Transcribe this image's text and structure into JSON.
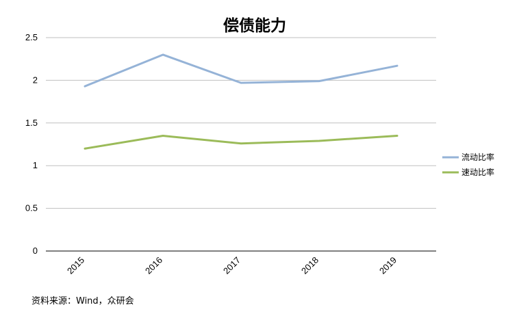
{
  "chart_data": {
    "type": "line",
    "title": "偿债能力",
    "categories": [
      "2015",
      "2016",
      "2017",
      "2018",
      "2019"
    ],
    "ylim": [
      0,
      2.5
    ],
    "yticks": [
      "0",
      "0.5",
      "1",
      "1.5",
      "2",
      "2.5"
    ],
    "grid": true,
    "legend_position": "right",
    "series": [
      {
        "name": "流动比率",
        "color": "#95b3d7",
        "values": [
          1.93,
          2.3,
          1.97,
          1.99,
          2.17
        ]
      },
      {
        "name": "速动比率",
        "color": "#9bbb59",
        "values": [
          1.2,
          1.35,
          1.26,
          1.29,
          1.35
        ]
      }
    ]
  },
  "source": "资料来源：Wind，众研会"
}
